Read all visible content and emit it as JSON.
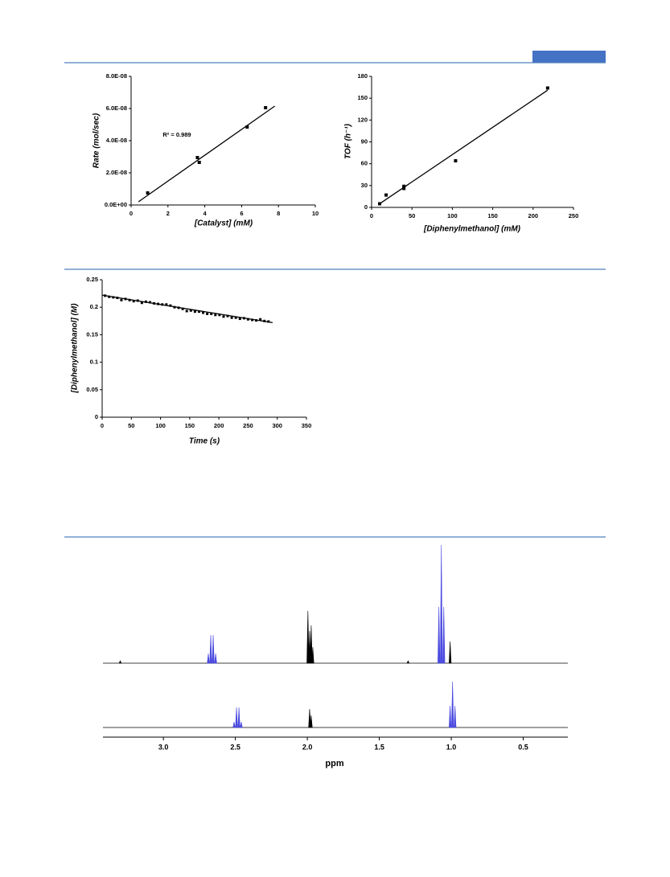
{
  "chart_data": [
    {
      "type": "scatter",
      "xlabel": "[Catalyst] (mM)",
      "ylabel": "Rate (mol/sec)",
      "annotation": "R² = 0.989",
      "xlim": [
        0,
        10
      ],
      "xticks": [
        0,
        2,
        4,
        6,
        8,
        10
      ],
      "ylim": [
        0,
        8e-08
      ],
      "yticks": [
        {
          "value": 0,
          "label": "0.0E+00"
        },
        {
          "value": 2e-08,
          "label": "2.0E-08"
        },
        {
          "value": 4e-08,
          "label": "4.0E-08"
        },
        {
          "value": 6e-08,
          "label": "6.0E-08"
        },
        {
          "value": 8e-08,
          "label": "8.0E-08"
        }
      ],
      "series": [
        {
          "color": "#000000",
          "x": [
            0.9,
            3.6,
            3.7,
            6.3,
            7.3
          ],
          "values": [
            7.5e-09,
            2.95e-08,
            2.65e-08,
            4.85e-08,
            6.05e-08
          ]
        }
      ],
      "fit": {
        "color": "#000000",
        "x": [
          0.4,
          7.8
        ],
        "values": [
          2e-09,
          6.15e-08
        ]
      }
    },
    {
      "type": "scatter",
      "xlabel": "[Diphenylmethanol] (mM)",
      "ylabel": "TOF (h⁻¹)",
      "xlim": [
        0,
        250
      ],
      "xticks": [
        0,
        50,
        100,
        150,
        200,
        250
      ],
      "ylim": [
        0,
        180
      ],
      "yticks": [
        0,
        30,
        60,
        90,
        120,
        150,
        180
      ],
      "series": [
        {
          "color": "#000000",
          "x": [
            10,
            18,
            40,
            40,
            104,
            218
          ],
          "values": [
            5,
            17,
            26,
            29,
            64,
            164
          ]
        }
      ],
      "fit": {
        "color": "#000000",
        "x": [
          10,
          218
        ],
        "values": [
          5,
          161
        ]
      }
    },
    {
      "type": "scatter",
      "xlabel": "Time (s)",
      "ylabel": "[Diphenylmethanol] (M)",
      "xlim": [
        0,
        350
      ],
      "xticks": [
        0,
        50,
        100,
        150,
        200,
        250,
        300,
        350
      ],
      "ylim": [
        0,
        0.25
      ],
      "yticks": [
        0,
        0.05,
        0.1,
        0.15,
        0.2,
        0.25
      ],
      "series": [
        {
          "color": "#000000",
          "x": [
            5,
            12,
            19,
            26,
            33,
            40,
            47,
            54,
            61,
            68,
            75,
            82,
            89,
            96,
            103,
            110,
            117,
            124,
            131,
            138,
            145,
            152,
            159,
            166,
            173,
            180,
            187,
            194,
            201,
            208,
            215,
            222,
            229,
            236,
            243,
            250,
            257,
            264,
            271,
            278,
            285
          ],
          "values": [
            0.221,
            0.219,
            0.218,
            0.217,
            0.213,
            0.215,
            0.213,
            0.211,
            0.212,
            0.208,
            0.21,
            0.209,
            0.207,
            0.206,
            0.205,
            0.205,
            0.203,
            0.2,
            0.199,
            0.197,
            0.193,
            0.194,
            0.192,
            0.192,
            0.19,
            0.188,
            0.188,
            0.186,
            0.186,
            0.183,
            0.184,
            0.181,
            0.181,
            0.179,
            0.18,
            0.178,
            0.177,
            0.176,
            0.178,
            0.175,
            0.174
          ]
        }
      ],
      "fit": {
        "color": "#000000",
        "x": [
          0,
          292
        ],
        "values": [
          0.222,
          0.172
        ]
      }
    },
    {
      "type": "spectrum",
      "xlabel": "ppm",
      "xlim": [
        3.42,
        0.19
      ],
      "xticks": [
        {
          "value": 3,
          "label": "3.0"
        },
        2.5,
        {
          "value": 2,
          "label": "2.0"
        },
        1.5,
        {
          "value": 1,
          "label": "1.0"
        },
        0.5
      ],
      "spectra": [
        {
          "series": [
            {
              "color": "#4a4ae0",
              "x": [
                2.688,
                2.671,
                2.654,
                2.637,
                1.086,
                1.069,
                1.052
              ],
              "values": [
                12,
                35,
                35,
                12,
                70,
                147,
                70
              ]
            },
            {
              "color": "#000000",
              "x": [
                3.3,
                1.996,
                1.984,
                1.973,
                1.962,
                1.3,
                1.008
              ],
              "values": [
                3,
                65,
                40,
                47,
                20,
                3,
                27
              ]
            }
          ]
        },
        {
          "series": [
            {
              "color": "#4a4ae0",
              "x": [
                2.509,
                2.492,
                2.475,
                2.459,
                1.008,
                0.991,
                0.974
              ],
              "values": [
                7,
                25,
                25,
                7,
                27,
                57,
                27
              ]
            },
            {
              "color": "#000000",
              "x": [
                1.984,
                1.973
              ],
              "values": [
                23,
                15
              ]
            }
          ]
        }
      ]
    }
  ]
}
